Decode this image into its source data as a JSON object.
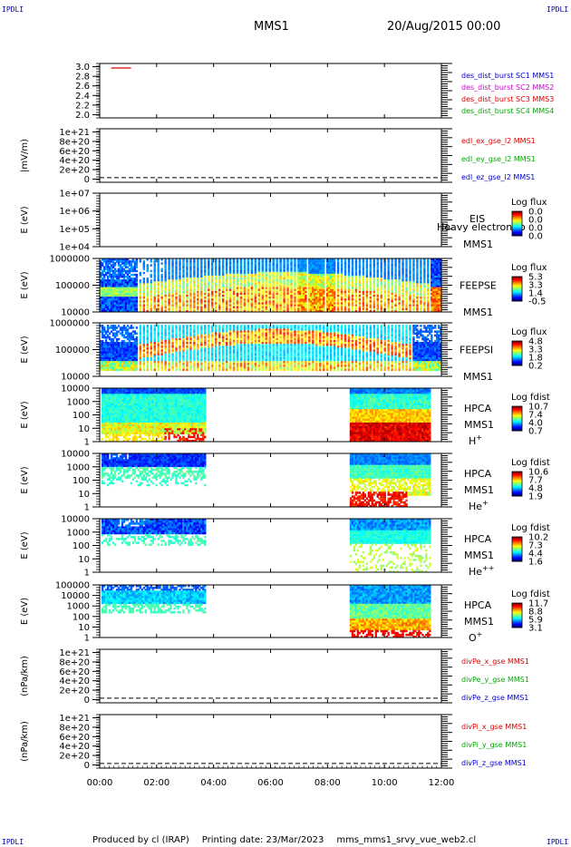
{
  "corner_label": "IPDLI",
  "header": {
    "spacecraft": "MMS1",
    "date": "20/Aug/2015 00:00"
  },
  "footer": {
    "produced_by": "Produced by cl (IRAP)",
    "printing_date": "Printing date: 23/Mar/2023",
    "script_name": "mms_mms1_srvy_vue_web2.cl"
  },
  "chart_data": {
    "type": "heatmap",
    "x_ticks": [
      "00:00",
      "02:00",
      "04:00",
      "06:00",
      "08:00",
      "10:00",
      "12:00"
    ],
    "xlim_hours": [
      0,
      12
    ],
    "panels": [
      {
        "type": "line",
        "yticks": [
          "3.0",
          "2.8",
          "2.6",
          "2.4",
          "2.2",
          "2.0"
        ],
        "ylim": [
          1.9,
          3.1
        ],
        "series": [
          {
            "x": [
              0.4,
              1.1
            ],
            "y": [
              3.0,
              3.0
            ],
            "color": "#dd0000"
          }
        ],
        "legend": [
          {
            "text": "des_dist_burst SC1 MMS1",
            "color": "#0000cc"
          },
          {
            "text": "des_dist_burst SC2 MMS2",
            "color": "#cc00cc"
          },
          {
            "text": "des_dist_burst SC3 MMS3",
            "color": "#dd0000"
          },
          {
            "text": "des_dist_burst SC4 MMS4",
            "color": "#00aa00"
          }
        ]
      },
      {
        "type": "line",
        "ylabel": "|mV/m)",
        "yticks": [
          "1e+21",
          "8e+20",
          "6e+20",
          "4e+20",
          "2e+20",
          "0"
        ],
        "ylim": [
          -1e+20,
          1.05e+21
        ],
        "zero_dashed": true,
        "legend": [
          {
            "text": "edl_ex_gse_l2 MMS1",
            "color": "#dd0000"
          },
          {
            "text": "edl_ey_gse_l2 MMS1",
            "color": "#00aa00"
          },
          {
            "text": "edl_ez_gse_l2 MMS1",
            "color": "#0000cc"
          }
        ]
      },
      {
        "type": "heatmap",
        "ylabel": "E (eV)",
        "yticks": [
          "1e+07",
          "1e+06",
          "1e+05",
          "1e+04"
        ],
        "labels": [
          "EIS",
          "Heavy electron to",
          "MMS1"
        ],
        "cbar_title": "Log flux",
        "cbar_ticks": [
          "0.0",
          "0.0",
          "0.0",
          "0.0"
        ],
        "pattern": "empty"
      },
      {
        "type": "heatmap",
        "ylabel": "E (eV)",
        "yticks": [
          "1000000",
          "100000",
          "10000"
        ],
        "labels": [
          "FEEPSE",
          "MMS1"
        ],
        "cbar_title": "Log flux",
        "cbar_ticks": [
          "5.3",
          "3.3",
          "1.4",
          "-0.5"
        ],
        "pattern": "feepse"
      },
      {
        "type": "heatmap",
        "ylabel": "E (eV)",
        "yticks": [
          "1000000",
          "100000",
          "10000"
        ],
        "labels": [
          "FEEPSI",
          "MMS1"
        ],
        "cbar_title": "Log flux",
        "cbar_ticks": [
          "4.8",
          "3.3",
          "1.8",
          "0.2"
        ],
        "pattern": "feepsi"
      },
      {
        "type": "heatmap",
        "ylabel": "E (eV)",
        "yticks": [
          "10000",
          "1000",
          "100",
          "10",
          "1"
        ],
        "labels": [
          "HPCA",
          "MMS1"
        ],
        "species": {
          "base": "H",
          "sup": "+"
        },
        "cbar_title": "Log fdist",
        "cbar_ticks": [
          "10.7",
          "7.4",
          "4.0",
          "0.7"
        ],
        "pattern": "hpca_h"
      },
      {
        "type": "heatmap",
        "ylabel": "E (eV)",
        "yticks": [
          "10000",
          "1000",
          "100",
          "10",
          "1"
        ],
        "labels": [
          "HPCA",
          "MMS1"
        ],
        "species": {
          "base": "He",
          "sup": "+"
        },
        "cbar_title": "Log fdist",
        "cbar_ticks": [
          "10.6",
          "7.7",
          "4.8",
          "1.9"
        ],
        "pattern": "hpca_he"
      },
      {
        "type": "heatmap",
        "ylabel": "E (eV)",
        "yticks": [
          "10000",
          "1000",
          "100",
          "10",
          "1"
        ],
        "labels": [
          "HPCA",
          "MMS1"
        ],
        "species": {
          "base": "He",
          "sup": "++"
        },
        "cbar_title": "Log fdist",
        "cbar_ticks": [
          "10.2",
          "7.3",
          "4.4",
          "1.6"
        ],
        "pattern": "hpca_hepp"
      },
      {
        "type": "heatmap",
        "ylabel": "E (eV)",
        "yticks": [
          "100000",
          "10000",
          "1000",
          "100",
          "10",
          "1"
        ],
        "labels": [
          "HPCA",
          "MMS1"
        ],
        "species": {
          "base": "O",
          "sup": "+"
        },
        "cbar_title": "Log fdist",
        "cbar_ticks": [
          "11.7",
          "8.8",
          "5.9",
          "3.1"
        ],
        "pattern": "hpca_o"
      },
      {
        "type": "line",
        "ylabel": "(nPa/km)",
        "yticks": [
          "1e+21",
          "8e+20",
          "6e+20",
          "4e+20",
          "2e+20",
          "0"
        ],
        "ylim": [
          -1e+20,
          1.05e+21
        ],
        "zero_dashed": true,
        "legend": [
          {
            "text": "divPe_x_gse MMS1",
            "color": "#dd0000"
          },
          {
            "text": "divPe_y_gse MMS1",
            "color": "#00aa00"
          },
          {
            "text": "divPe_z_gse MMS1",
            "color": "#0000cc"
          }
        ]
      },
      {
        "type": "line",
        "ylabel": "(nPa/km)",
        "yticks": [
          "1e+21",
          "8e+20",
          "6e+20",
          "4e+20",
          "2e+20",
          "0"
        ],
        "ylim": [
          -1e+20,
          1.05e+21
        ],
        "zero_dashed": true,
        "legend": [
          {
            "text": "divPi_x_gse MMS1",
            "color": "#dd0000"
          },
          {
            "text": "divPi_y_gse MMS1",
            "color": "#00aa00"
          },
          {
            "text": "divPi_z_gse MMS1",
            "color": "#0000cc"
          }
        ]
      }
    ]
  }
}
